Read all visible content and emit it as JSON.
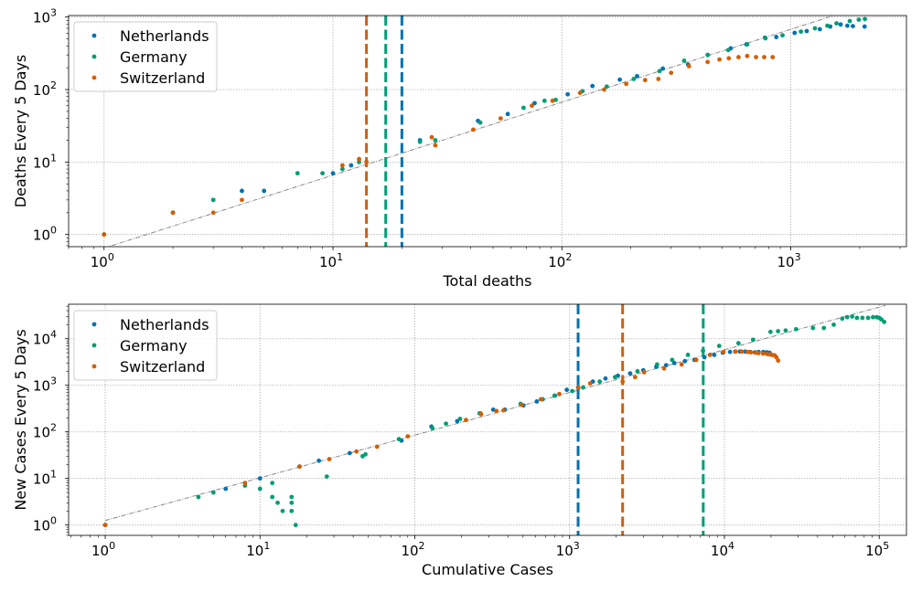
{
  "colors": {
    "Netherlands": "#0072b2",
    "Germany": "#009e73",
    "Switzerland": "#d55e00",
    "fit": "#888888",
    "grid": "#b0b0b0"
  },
  "chart_data": [
    {
      "type": "scatter",
      "xlabel": "Total deaths",
      "ylabel": "Deaths Every 5 Days",
      "xscale": "log",
      "yscale": "log",
      "xlim": [
        0.7,
        3200
      ],
      "ylim": [
        0.68,
        1050
      ],
      "xticks": [
        {
          "v": 1,
          "b": "10",
          "e": "0"
        },
        {
          "v": 10,
          "b": "10",
          "e": "1"
        },
        {
          "v": 100,
          "b": "10",
          "e": "2"
        },
        {
          "v": 1000,
          "b": "10",
          "e": "3"
        }
      ],
      "yticks": [
        {
          "v": 1,
          "b": "10",
          "e": "0"
        },
        {
          "v": 10,
          "b": "10",
          "e": "1"
        },
        {
          "v": 100,
          "b": "10",
          "e": "2"
        },
        {
          "v": 1000,
          "b": "10",
          "e": "3"
        }
      ],
      "grid": true,
      "legend": "top-left",
      "legend_labels": [
        "Netherlands",
        "Germany",
        "Switzerland"
      ],
      "fit_line": {
        "x": [
          1,
          2200
        ],
        "y": [
          0.65,
          1500
        ]
      },
      "vlines": [
        {
          "series": "Switzerland",
          "x": 14
        },
        {
          "series": "Germany",
          "x": 17
        },
        {
          "series": "Netherlands",
          "x": 20
        }
      ],
      "series": [
        {
          "key": "Netherlands",
          "x": [
            1,
            2,
            3,
            4,
            5,
            10,
            12,
            24,
            43,
            58,
            76,
            106,
            136,
            179,
            213,
            276,
            356,
            434,
            546,
            639,
            771,
            864,
            1039,
            1173,
            1339,
            1487,
            1651,
            1766,
            1867,
            2101
          ],
          "y": [
            1,
            2,
            3,
            4,
            4,
            7,
            9,
            20,
            37,
            46,
            65,
            86,
            112,
            137,
            153,
            195,
            220,
            300,
            370,
            420,
            520,
            530,
            605,
            640,
            680,
            740,
            790,
            760,
            750,
            740
          ]
        },
        {
          "key": "Germany",
          "x": [
            1,
            2,
            3,
            7,
            9,
            11,
            13,
            24,
            28,
            44,
            68,
            84,
            94,
            123,
            157,
            206,
            267,
            342,
            433,
            533,
            645,
            775,
            920,
            1107,
            1275,
            1444,
            1584,
            1810,
            1981,
            2107
          ],
          "y": [
            1,
            2,
            3,
            7,
            7,
            8,
            10,
            19,
            20,
            35,
            56,
            70,
            72,
            95,
            110,
            140,
            180,
            250,
            300,
            350,
            420,
            510,
            560,
            630,
            700,
            760,
            820,
            880,
            920,
            940
          ]
        },
        {
          "key": "Switzerland",
          "x": [
            1,
            2,
            3,
            4,
            11,
            13,
            14,
            27,
            28,
            41,
            54,
            74,
            91,
            120,
            153,
            191,
            231,
            264,
            300,
            359,
            433,
            488,
            536,
            591,
            645,
            705,
            765,
            833
          ],
          "y": [
            1,
            2,
            2,
            3,
            9,
            11,
            10,
            22,
            17,
            28,
            40,
            60,
            70,
            90,
            100,
            120,
            135,
            140,
            170,
            210,
            240,
            260,
            270,
            280,
            290,
            280,
            280,
            280
          ]
        }
      ]
    },
    {
      "type": "scatter",
      "xlabel": "Cumulative Cases",
      "ylabel": "New Cases Every 5 Days",
      "xscale": "log",
      "yscale": "log",
      "xlim": [
        0.58,
        150000
      ],
      "ylim": [
        0.6,
        55000
      ],
      "xticks": [
        {
          "v": 1,
          "b": "10",
          "e": "0"
        },
        {
          "v": 10,
          "b": "10",
          "e": "1"
        },
        {
          "v": 100,
          "b": "10",
          "e": "2"
        },
        {
          "v": 1000,
          "b": "10",
          "e": "3"
        },
        {
          "v": 10000,
          "b": "10",
          "e": "4"
        },
        {
          "v": 100000,
          "b": "10",
          "e": "5"
        }
      ],
      "yticks": [
        {
          "v": 1,
          "b": "10",
          "e": "0"
        },
        {
          "v": 10,
          "b": "10",
          "e": "1"
        },
        {
          "v": 100,
          "b": "10",
          "e": "2"
        },
        {
          "v": 1000,
          "b": "10",
          "e": "3"
        },
        {
          "v": 10000,
          "b": "10",
          "e": "4"
        }
      ],
      "grid": true,
      "legend": "top-left",
      "legend_labels": [
        "Netherlands",
        "Germany",
        "Switzerland"
      ],
      "fit_line": {
        "x": [
          1,
          110000
        ],
        "y": [
          1.25,
          52000
        ]
      },
      "vlines": [
        {
          "series": "Netherlands",
          "x": 1135
        },
        {
          "series": "Switzerland",
          "x": 2200
        },
        {
          "series": "Germany",
          "x": 7300
        }
      ],
      "series": [
        {
          "key": "Netherlands",
          "x": [
            1,
            6,
            10,
            18,
            24,
            38,
            82,
            128,
            188,
            265,
            321,
            382,
            503,
            614,
            804,
            959,
            1135,
            1413,
            1705,
            2051,
            2460,
            2994,
            3631,
            4204,
            4749,
            5560,
            6412,
            7431,
            8603,
            9762,
            10866,
            11750,
            12595,
            13614,
            14697,
            15723,
            16627,
            17851,
            18803,
            19580
          ],
          "y": [
            1,
            6,
            10,
            18,
            24,
            35,
            65,
            130,
            170,
            250,
            300,
            300,
            370,
            450,
            600,
            800,
            900,
            1200,
            1400,
            1600,
            1800,
            2100,
            2500,
            2700,
            3000,
            3300,
            3500,
            4000,
            4500,
            5000,
            5200,
            5300,
            5300,
            5300,
            5200,
            5100,
            5200,
            5200,
            5100,
            5000
          ]
        },
        {
          "key": "Germany",
          "x": [
            1,
            4,
            5,
            8,
            10,
            12,
            12,
            13,
            14,
            16,
            16,
            16,
            17,
            27,
            46,
            48,
            79,
            130,
            159,
            196,
            262,
            482,
            670,
            799,
            1040,
            1224,
            1565,
            1966,
            2745,
            3675,
            4599,
            5813,
            7272,
            9257,
            12327,
            15320,
            19848,
            22213,
            24873,
            29056,
            37323,
            43938,
            50871,
            57695,
            62095,
            66885,
            71808,
            77872,
            84794,
            91159,
            96092,
            100123,
            103375,
            107663
          ],
          "y": [
            1,
            4,
            5,
            7,
            6,
            4,
            8,
            3,
            2,
            2,
            3,
            4,
            1,
            11,
            30,
            33,
            70,
            120,
            150,
            190,
            250,
            400,
            500,
            600,
            750,
            900,
            1200,
            1500,
            2000,
            2800,
            3500,
            4500,
            5500,
            7000,
            8000,
            9500,
            14000,
            14500,
            15000,
            16000,
            17000,
            17000,
            20000,
            27000,
            29000,
            30000,
            28000,
            28000,
            28000,
            29000,
            29000,
            28000,
            26000,
            23000
          ]
        },
        {
          "key": "Switzerland",
          "x": [
            1,
            8,
            18,
            28,
            42,
            57,
            90,
            214,
            268,
            337,
            374,
            491,
            652,
            858,
            1139,
            1359,
            2200,
            2650,
            3028,
            4075,
            5294,
            6575,
            8060,
            9877,
            11811,
            12928,
            14076,
            14829,
            15922,
            16605,
            17768,
            18827,
            19606,
            20278,
            21100,
            21657,
            22253
          ],
          "y": [
            1,
            8,
            18,
            26,
            38,
            48,
            80,
            180,
            240,
            280,
            290,
            380,
            500,
            650,
            900,
            1100,
            1200,
            1500,
            1900,
            2300,
            2800,
            3500,
            4500,
            5200,
            5300,
            5300,
            5200,
            5100,
            5000,
            4900,
            4800,
            4700,
            4600,
            4500,
            4400,
            4000,
            3400
          ]
        }
      ]
    }
  ]
}
